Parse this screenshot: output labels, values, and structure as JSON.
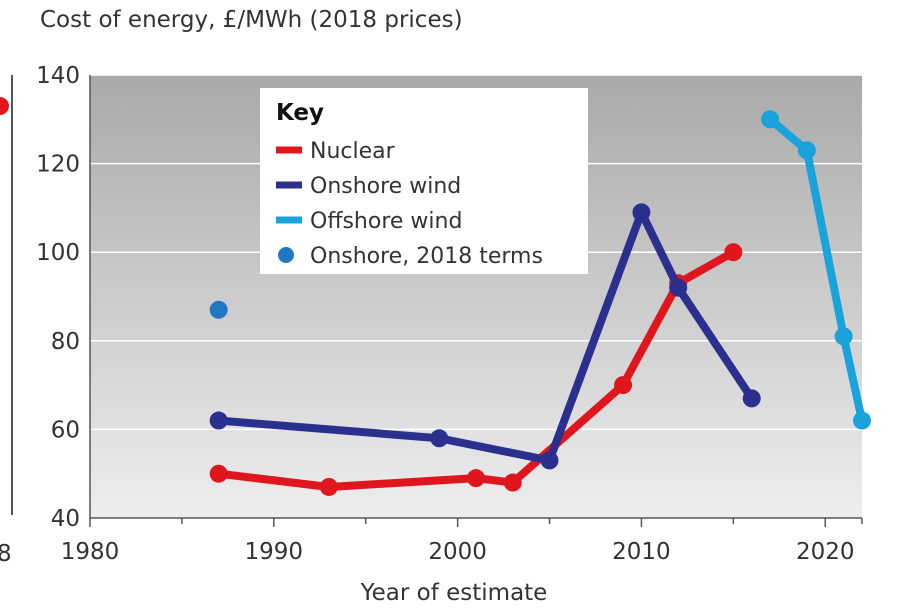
{
  "chart_data": {
    "type": "line",
    "title": "Cost of energy, £/MWh (2018 prices)",
    "xlabel": "Year of estimate",
    "ylabel": "",
    "xlim": [
      1980,
      2022
    ],
    "ylim": [
      40,
      140
    ],
    "x_ticks": [
      1980,
      1990,
      2000,
      2010,
      2020
    ],
    "y_ticks": [
      40,
      60,
      80,
      100,
      120,
      140
    ],
    "grid": "horizontal",
    "legend_title": "Key",
    "legend_position": "top-center",
    "colors": {
      "nuclear": "#e0161f",
      "onshore_wind": "#2b2f8e",
      "offshore_wind": "#1aa2dd",
      "onshore_2018": "#1f78c1"
    },
    "series": [
      {
        "name": "Nuclear",
        "type": "line",
        "color": "#e0161f",
        "points": [
          [
            1987,
            50
          ],
          [
            1993,
            47
          ],
          [
            2001,
            49
          ],
          [
            2003,
            48
          ],
          [
            2009,
            70
          ],
          [
            2012,
            93
          ],
          [
            2015,
            100
          ]
        ]
      },
      {
        "name": "Onshore wind",
        "type": "line",
        "color": "#2b2f8e",
        "points": [
          [
            1987,
            62
          ],
          [
            1999,
            58
          ],
          [
            2005,
            53
          ],
          [
            2010,
            109
          ],
          [
            2012,
            92
          ],
          [
            2016,
            67
          ]
        ]
      },
      {
        "name": "Offshore wind",
        "type": "line",
        "color": "#1aa2dd",
        "points": [
          [
            2017,
            130
          ],
          [
            2019,
            123
          ],
          [
            2021,
            81
          ],
          [
            2022,
            62
          ]
        ]
      },
      {
        "name": "Onshore, 2018 terms",
        "type": "scatter",
        "color": "#1f78c1",
        "points": [
          [
            1987,
            87
          ]
        ]
      }
    ]
  },
  "edge": {
    "left_tick_fragment": "8",
    "left_marker_value": 133
  }
}
